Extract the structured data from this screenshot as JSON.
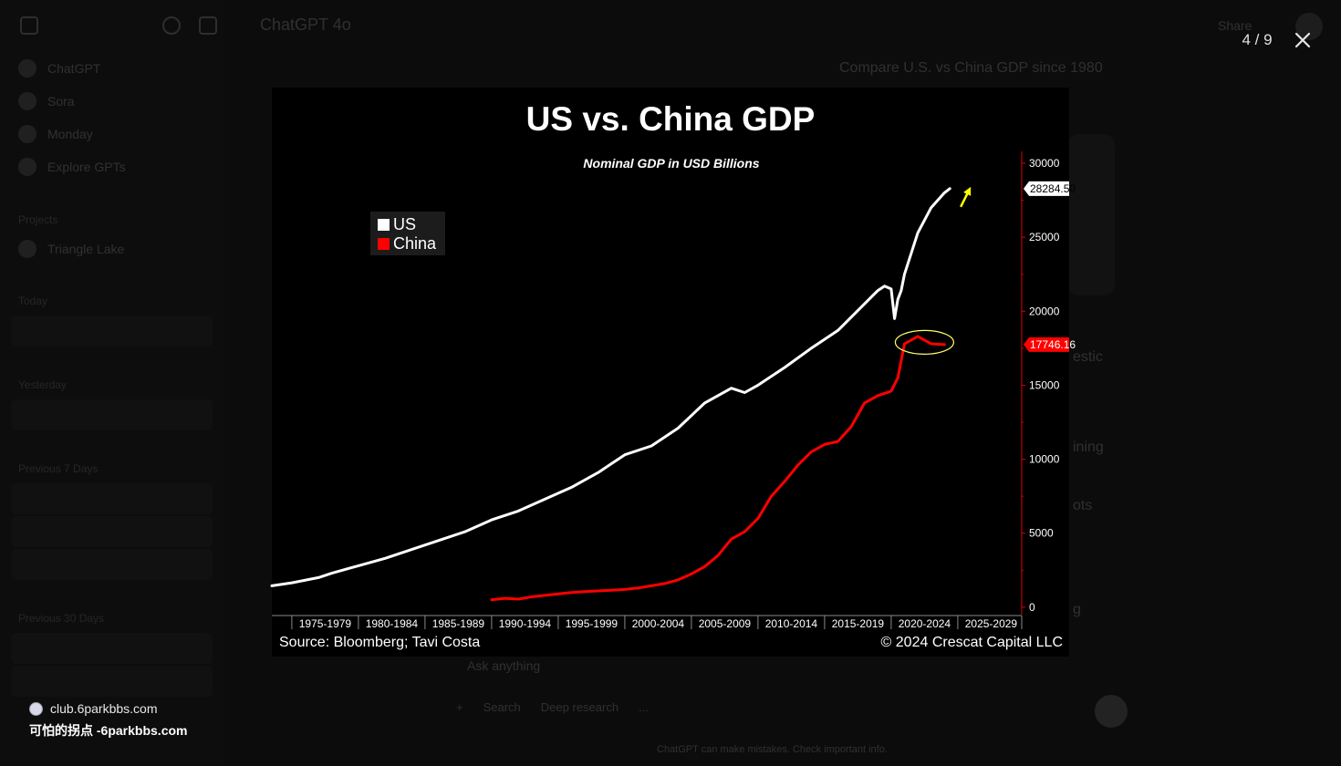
{
  "background_app": {
    "header_title": "ChatGPT 4o",
    "share_label": "Share",
    "sidebar": {
      "items": [
        "ChatGPT",
        "Sora",
        "Monday",
        "Explore GPTs"
      ],
      "projects_label": "Projects",
      "project_item": "Triangle Lake",
      "today_label": "Today",
      "yesterday_label": "Yesterday",
      "prev7_label": "Previous 7 Days",
      "prev30_label": "Previous 30 Days"
    },
    "user_message": "Compare U.S. vs China GDP since 1980",
    "fragments": [
      "estic",
      "ining",
      "ots",
      "g"
    ],
    "input_placeholder": "Ask anything",
    "input_tools": [
      "+",
      "Search",
      "Deep research",
      "..."
    ],
    "footer_text": "ChatGPT can make mistakes. Check important info."
  },
  "viewer": {
    "counter": "4 / 9"
  },
  "watermark": {
    "site": "club.6parkbbs.com",
    "title": "可怕的拐点 -6parkbbs.com"
  },
  "chart_data": {
    "type": "line",
    "title": "US vs. China GDP",
    "subtitle": "Nominal GDP in USD Billions",
    "source": "Source: Bloomberg; Tavi Costa",
    "copyright": "© 2024 Crescat Capital LLC",
    "x_tick_labels": [
      "1975-1979",
      "1980-1984",
      "1985-1989",
      "1990-1994",
      "1995-1999",
      "2000-2004",
      "2005-2009",
      "2010-2014",
      "2015-2019",
      "2020-2024",
      "2025-2029"
    ],
    "xlim": [
      1973.5,
      2029.8
    ],
    "y_ticks": [
      0,
      5000,
      10000,
      15000,
      20000,
      25000,
      30000
    ],
    "ylim": [
      -500,
      30800
    ],
    "y_axis_side": "right",
    "legend_position": "top-left",
    "grid": false,
    "series": [
      {
        "name": "US",
        "color": "#ffffff",
        "last_value_label": "28284.50",
        "x": [
          1973.5,
          1975,
          1977,
          1978,
          1980,
          1982,
          1984,
          1986,
          1988,
          1990,
          1992,
          1994,
          1996,
          1998,
          2000,
          2002,
          2004,
          2006,
          2008,
          2009,
          2010,
          2012,
          2014,
          2016,
          2018,
          2019,
          2019.5,
          2020.0,
          2020.25,
          2020.5,
          2020.75,
          2021,
          2022,
          2023,
          2024,
          2024.4
        ],
        "y": [
          1450,
          1650,
          2000,
          2300,
          2800,
          3300,
          3900,
          4500,
          5100,
          5900,
          6500,
          7300,
          8100,
          9100,
          10300,
          10900,
          12100,
          13800,
          14800,
          14500,
          15000,
          16200,
          17500,
          18700,
          20500,
          21400,
          21700,
          21500,
          19500,
          20800,
          21400,
          22500,
          25300,
          27000,
          28000,
          28284.5
        ]
      },
      {
        "name": "China",
        "color": "#ff0000",
        "last_value_label": "17746.16",
        "x": [
          1990,
          1991,
          1992,
          1993,
          1994,
          1995,
          1996,
          1997,
          1998,
          1999,
          2000,
          2001,
          2002,
          2003,
          2004,
          2005,
          2006,
          2007,
          2008,
          2009,
          2010,
          2011,
          2012,
          2013,
          2014,
          2015,
          2016,
          2017,
          2018,
          2019,
          2020,
          2020.5,
          2021,
          2022,
          2023,
          2024
        ],
        "y": [
          500,
          600,
          550,
          700,
          800,
          900,
          1000,
          1050,
          1100,
          1150,
          1200,
          1300,
          1450,
          1600,
          1850,
          2250,
          2750,
          3500,
          4600,
          5100,
          6000,
          7500,
          8500,
          9600,
          10500,
          11000,
          11200,
          12200,
          13800,
          14300,
          14600,
          15500,
          17800,
          18300,
          17800,
          17746.16
        ]
      }
    ],
    "annotations": [
      {
        "type": "arrow",
        "color": "#ffff00",
        "near_series": "US"
      },
      {
        "type": "ellipse",
        "color": "#ffff66",
        "near_series": "China"
      }
    ]
  }
}
